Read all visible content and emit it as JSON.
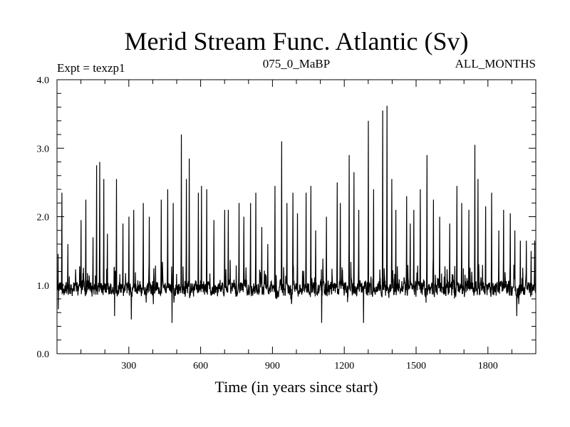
{
  "chart_data": {
    "type": "line",
    "title": "Merid Stream Func. Atlantic (Sv)",
    "subtitle_left": "Expt = texzp1",
    "subtitle_center": "075_0_MaBP",
    "subtitle_right": "ALL_MONTHS",
    "xlabel": "Time (in years since start)",
    "ylabel": "",
    "xlim": [
      0,
      2000
    ],
    "ylim": [
      0.0,
      4.0
    ],
    "x_ticks": [
      300,
      600,
      900,
      1200,
      1500,
      1800
    ],
    "x_tick_labels": [
      "300",
      "600",
      "900",
      "1200",
      "1500",
      "1800"
    ],
    "y_ticks": [
      0.0,
      1.0,
      2.0,
      3.0,
      4.0
    ],
    "y_tick_labels": [
      "0.0",
      "1.0",
      "2.0",
      "3.0",
      "4.0"
    ],
    "grid": false,
    "series": [
      {
        "name": "Merid Stream Func. Atlantic",
        "color": "#000000",
        "baseline": 0.95,
        "noise_amplitude": 0.16,
        "n_points": 2000,
        "peaks": [
          {
            "x": 5,
            "y": 2.4
          },
          {
            "x": 20,
            "y": 2.35
          },
          {
            "x": 45,
            "y": 1.6
          },
          {
            "x": 100,
            "y": 1.95
          },
          {
            "x": 120,
            "y": 2.25
          },
          {
            "x": 150,
            "y": 1.7
          },
          {
            "x": 165,
            "y": 2.75
          },
          {
            "x": 178,
            "y": 2.8
          },
          {
            "x": 195,
            "y": 2.55
          },
          {
            "x": 210,
            "y": 1.75
          },
          {
            "x": 248,
            "y": 2.55
          },
          {
            "x": 275,
            "y": 1.9
          },
          {
            "x": 300,
            "y": 2.0
          },
          {
            "x": 320,
            "y": 2.1
          },
          {
            "x": 360,
            "y": 2.2
          },
          {
            "x": 385,
            "y": 2.0
          },
          {
            "x": 435,
            "y": 2.25
          },
          {
            "x": 462,
            "y": 2.4
          },
          {
            "x": 485,
            "y": 2.2
          },
          {
            "x": 519,
            "y": 3.2
          },
          {
            "x": 540,
            "y": 2.55
          },
          {
            "x": 552,
            "y": 2.85
          },
          {
            "x": 590,
            "y": 2.35
          },
          {
            "x": 603,
            "y": 2.45
          },
          {
            "x": 625,
            "y": 2.4
          },
          {
            "x": 655,
            "y": 1.95
          },
          {
            "x": 700,
            "y": 2.1
          },
          {
            "x": 715,
            "y": 2.1
          },
          {
            "x": 760,
            "y": 2.2
          },
          {
            "x": 780,
            "y": 2.0
          },
          {
            "x": 808,
            "y": 2.2
          },
          {
            "x": 830,
            "y": 2.35
          },
          {
            "x": 855,
            "y": 1.85
          },
          {
            "x": 880,
            "y": 1.6
          },
          {
            "x": 910,
            "y": 2.45
          },
          {
            "x": 938,
            "y": 3.1
          },
          {
            "x": 960,
            "y": 2.2
          },
          {
            "x": 985,
            "y": 2.35
          },
          {
            "x": 1005,
            "y": 2.05
          },
          {
            "x": 1040,
            "y": 2.35
          },
          {
            "x": 1060,
            "y": 2.45
          },
          {
            "x": 1080,
            "y": 1.8
          },
          {
            "x": 1105,
            "y": 1.75
          },
          {
            "x": 1125,
            "y": 2.0
          },
          {
            "x": 1170,
            "y": 2.5
          },
          {
            "x": 1183,
            "y": 2.2
          },
          {
            "x": 1220,
            "y": 2.9
          },
          {
            "x": 1240,
            "y": 2.65
          },
          {
            "x": 1260,
            "y": 2.1
          },
          {
            "x": 1300,
            "y": 3.4
          },
          {
            "x": 1322,
            "y": 2.4
          },
          {
            "x": 1360,
            "y": 3.55
          },
          {
            "x": 1378,
            "y": 3.62
          },
          {
            "x": 1398,
            "y": 2.55
          },
          {
            "x": 1415,
            "y": 2.1
          },
          {
            "x": 1460,
            "y": 2.3
          },
          {
            "x": 1475,
            "y": 1.9
          },
          {
            "x": 1490,
            "y": 2.1
          },
          {
            "x": 1517,
            "y": 2.4
          },
          {
            "x": 1545,
            "y": 2.9
          },
          {
            "x": 1572,
            "y": 2.25
          },
          {
            "x": 1598,
            "y": 2.0
          },
          {
            "x": 1640,
            "y": 1.9
          },
          {
            "x": 1670,
            "y": 2.45
          },
          {
            "x": 1690,
            "y": 2.2
          },
          {
            "x": 1720,
            "y": 2.1
          },
          {
            "x": 1745,
            "y": 3.05
          },
          {
            "x": 1758,
            "y": 2.55
          },
          {
            "x": 1790,
            "y": 2.15
          },
          {
            "x": 1815,
            "y": 2.35
          },
          {
            "x": 1845,
            "y": 1.8
          },
          {
            "x": 1865,
            "y": 2.1
          },
          {
            "x": 1893,
            "y": 2.05
          },
          {
            "x": 1912,
            "y": 1.8
          },
          {
            "x": 1935,
            "y": 1.65
          },
          {
            "x": 1960,
            "y": 1.65
          },
          {
            "x": 1980,
            "y": 1.5
          },
          {
            "x": 1995,
            "y": 1.65
          }
        ],
        "dips": [
          {
            "x": 5,
            "y": 0.65
          },
          {
            "x": 240,
            "y": 0.55
          },
          {
            "x": 310,
            "y": 0.5
          },
          {
            "x": 480,
            "y": 0.45
          },
          {
            "x": 1105,
            "y": 0.45
          },
          {
            "x": 1280,
            "y": 0.45
          },
          {
            "x": 1920,
            "y": 0.55
          }
        ]
      }
    ]
  }
}
